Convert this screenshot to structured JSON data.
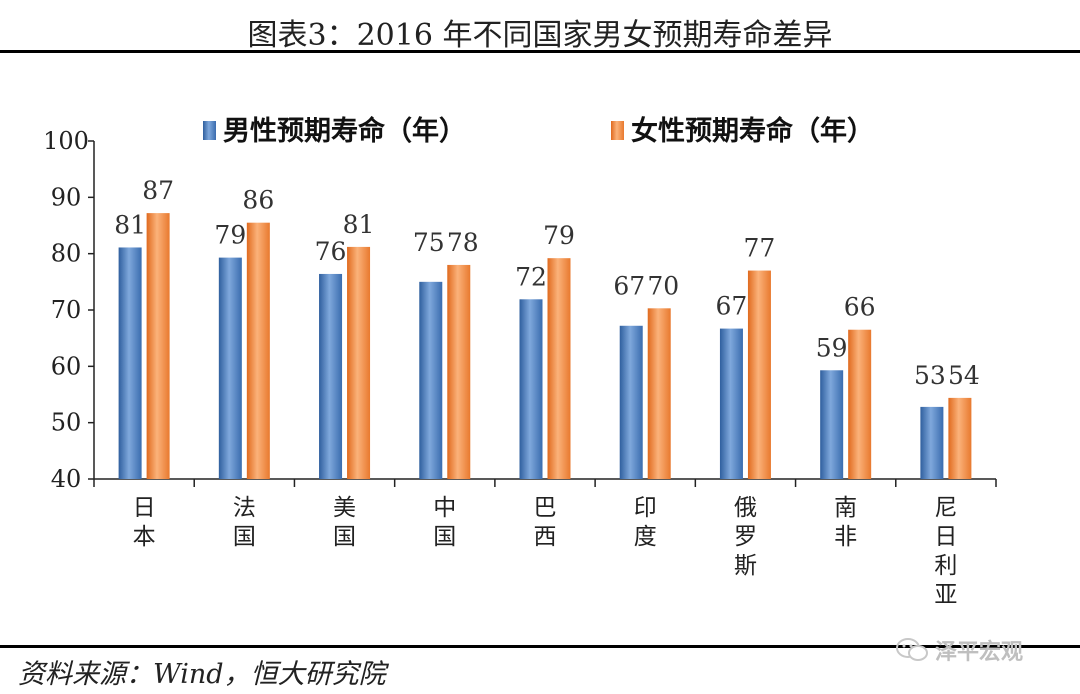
{
  "header": {
    "title": "图表3：2016 年不同国家男女预期寿命差异"
  },
  "footer": {
    "source": "资料来源：Wind，恒大研究院",
    "watermark": "泽平宏观"
  },
  "chart_data": {
    "type": "bar",
    "categories": [
      "日本",
      "法国",
      "美国",
      "中国",
      "巴西",
      "印度",
      "俄罗斯",
      "南非",
      "尼日利亚"
    ],
    "series": [
      {
        "name": "男性预期寿命（年）",
        "values": [
          81,
          79,
          76,
          75,
          72,
          67,
          67,
          59,
          53
        ],
        "color": "#4a7ebb"
      },
      {
        "name": "女性预期寿命（年）",
        "values": [
          87,
          86,
          81,
          78,
          79,
          70,
          77,
          66,
          54
        ],
        "color": "#f08a3c"
      }
    ],
    "heights": {
      "male": [
        81.1,
        79.3,
        76.4,
        75.0,
        71.9,
        67.2,
        66.7,
        59.3,
        52.8
      ],
      "female": [
        87.2,
        85.5,
        81.2,
        78.0,
        79.2,
        70.3,
        77.0,
        66.5,
        54.4
      ]
    },
    "ylim": [
      40,
      100
    ],
    "yticks": [
      40,
      50,
      60,
      70,
      80,
      90,
      100
    ],
    "legend_position": "top",
    "xlabel": "",
    "ylabel": "",
    "grid": false
  }
}
